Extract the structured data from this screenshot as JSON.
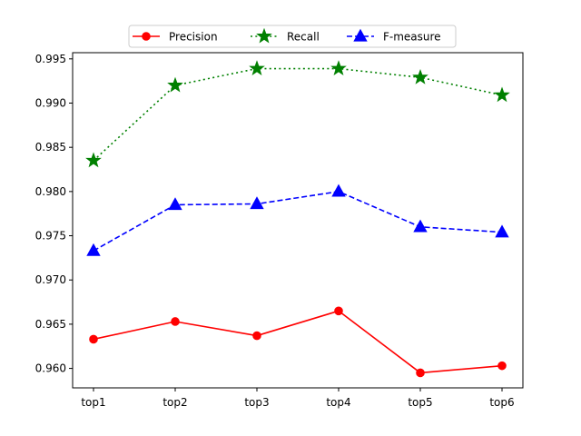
{
  "chart_data": {
    "type": "line",
    "categories": [
      "top1",
      "top2",
      "top3",
      "top4",
      "top5",
      "top6"
    ],
    "ylim": [
      0.9578,
      0.9957
    ],
    "yticks": [
      0.96,
      0.965,
      0.97,
      0.975,
      0.98,
      0.985,
      0.99,
      0.995
    ],
    "ytick_labels": [
      "0.960",
      "0.965",
      "0.970",
      "0.975",
      "0.980",
      "0.985",
      "0.990",
      "0.995"
    ],
    "grid": false,
    "legend_position": "top-center",
    "series": [
      {
        "name": "Precision",
        "values": [
          0.9633,
          0.9653,
          0.9637,
          0.9665,
          0.9595,
          0.9603
        ],
        "color": "#ff0000",
        "linestyle": "solid",
        "marker": "circle"
      },
      {
        "name": "Recall",
        "values": [
          0.9835,
          0.992,
          0.9939,
          0.9939,
          0.9929,
          0.9909
        ],
        "color": "#008000",
        "linestyle": "dotted",
        "marker": "star"
      },
      {
        "name": "F-measure",
        "values": [
          0.9733,
          0.9785,
          0.9786,
          0.98,
          0.976,
          0.9754
        ],
        "color": "#0000ff",
        "linestyle": "dashed",
        "marker": "triangle"
      }
    ]
  }
}
